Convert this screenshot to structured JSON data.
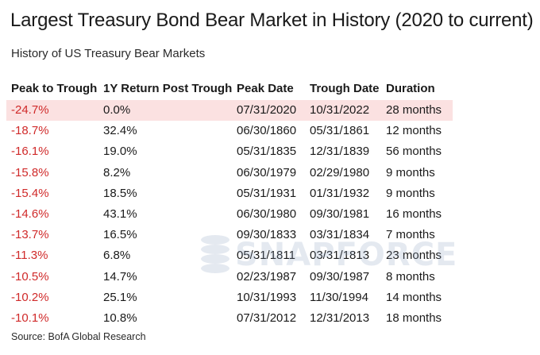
{
  "title": "Largest Treasury Bond Bear Market in History (2020 to current)",
  "subtitle": "History of US Treasury Bear Markets",
  "columns": [
    "Peak to Trough",
    "1Y Return Post Trough",
    "Peak Date",
    "Trough Date",
    "Duration"
  ],
  "rows": [
    {
      "peak_to_trough": "-24.7%",
      "return_1y": "0.0%",
      "peak_date": "07/31/2020",
      "trough_date": "10/31/2022",
      "duration": "28 months",
      "highlighted": true
    },
    {
      "peak_to_trough": "-18.7%",
      "return_1y": "32.4%",
      "peak_date": "06/30/1860",
      "trough_date": "05/31/1861",
      "duration": "12 months"
    },
    {
      "peak_to_trough": "-16.1%",
      "return_1y": "19.0%",
      "peak_date": "05/31/1835",
      "trough_date": "12/31/1839",
      "duration": "56 months"
    },
    {
      "peak_to_trough": "-15.8%",
      "return_1y": "8.2%",
      "peak_date": "06/30/1979",
      "trough_date": "02/29/1980",
      "duration": "9 months"
    },
    {
      "peak_to_trough": "-15.4%",
      "return_1y": "18.5%",
      "peak_date": "05/31/1931",
      "trough_date": "01/31/1932",
      "duration": "9 months"
    },
    {
      "peak_to_trough": "-14.6%",
      "return_1y": "43.1%",
      "peak_date": "06/30/1980",
      "trough_date": "09/30/1981",
      "duration": "16 months"
    },
    {
      "peak_to_trough": "-13.7%",
      "return_1y": "16.5%",
      "peak_date": "09/30/1833",
      "trough_date": "03/31/1834",
      "duration": "7 months"
    },
    {
      "peak_to_trough": "-11.3%",
      "return_1y": "6.8%",
      "peak_date": "05/31/1811",
      "trough_date": "03/31/1813",
      "duration": "23 months"
    },
    {
      "peak_to_trough": "-10.5%",
      "return_1y": "14.7%",
      "peak_date": "02/23/1987",
      "trough_date": "09/30/1987",
      "duration": "8 months"
    },
    {
      "peak_to_trough": "-10.2%",
      "return_1y": "25.1%",
      "peak_date": "10/31/1993",
      "trough_date": "11/30/1994",
      "duration": "14 months"
    },
    {
      "peak_to_trough": "-10.1%",
      "return_1y": "10.8%",
      "peak_date": "07/31/2012",
      "trough_date": "12/31/2013",
      "duration": "18 months"
    }
  ],
  "source": "Source: BofA Global Research",
  "watermark": "SNAPFORCE",
  "colors": {
    "negative": "#d02a2a",
    "highlight": "#fbe1e1",
    "text": "#1a1a1a"
  }
}
